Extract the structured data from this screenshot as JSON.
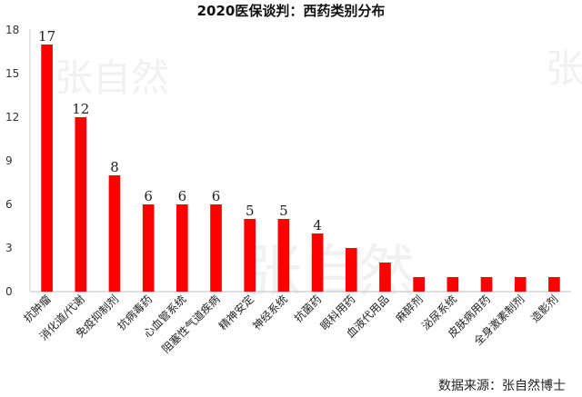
{
  "chart_data": {
    "type": "bar",
    "title": "2020医保谈判：西药类别分布",
    "categories": [
      "抗肿瘤",
      "消化道/代谢",
      "免疫抑制剂",
      "抗病毒药",
      "心血管系统",
      "阻塞性气道疾病",
      "精神安定",
      "神经系统",
      "抗菌药",
      "眼科用药",
      "血液代用品",
      "麻醉剂",
      "泌尿系统",
      "皮肤病用药",
      "全身激素制剂",
      "造影剂"
    ],
    "values": [
      17,
      12,
      8,
      6,
      6,
      6,
      5,
      5,
      4,
      3,
      2,
      1,
      1,
      1,
      1,
      1
    ],
    "data_labels": [
      "17",
      "12",
      "8",
      "6",
      "6",
      "6",
      "5",
      "5",
      "4",
      "",
      "",
      "",
      "",
      "",
      "",
      ""
    ],
    "yticks": [
      "0",
      "3",
      "6",
      "9",
      "12",
      "15",
      "18"
    ],
    "ylim": [
      0,
      18
    ],
    "grid": false,
    "legend": "none",
    "bar_color": "#ff0000"
  },
  "source_note": "数据来源：张自然博士",
  "watermark": "张自然"
}
